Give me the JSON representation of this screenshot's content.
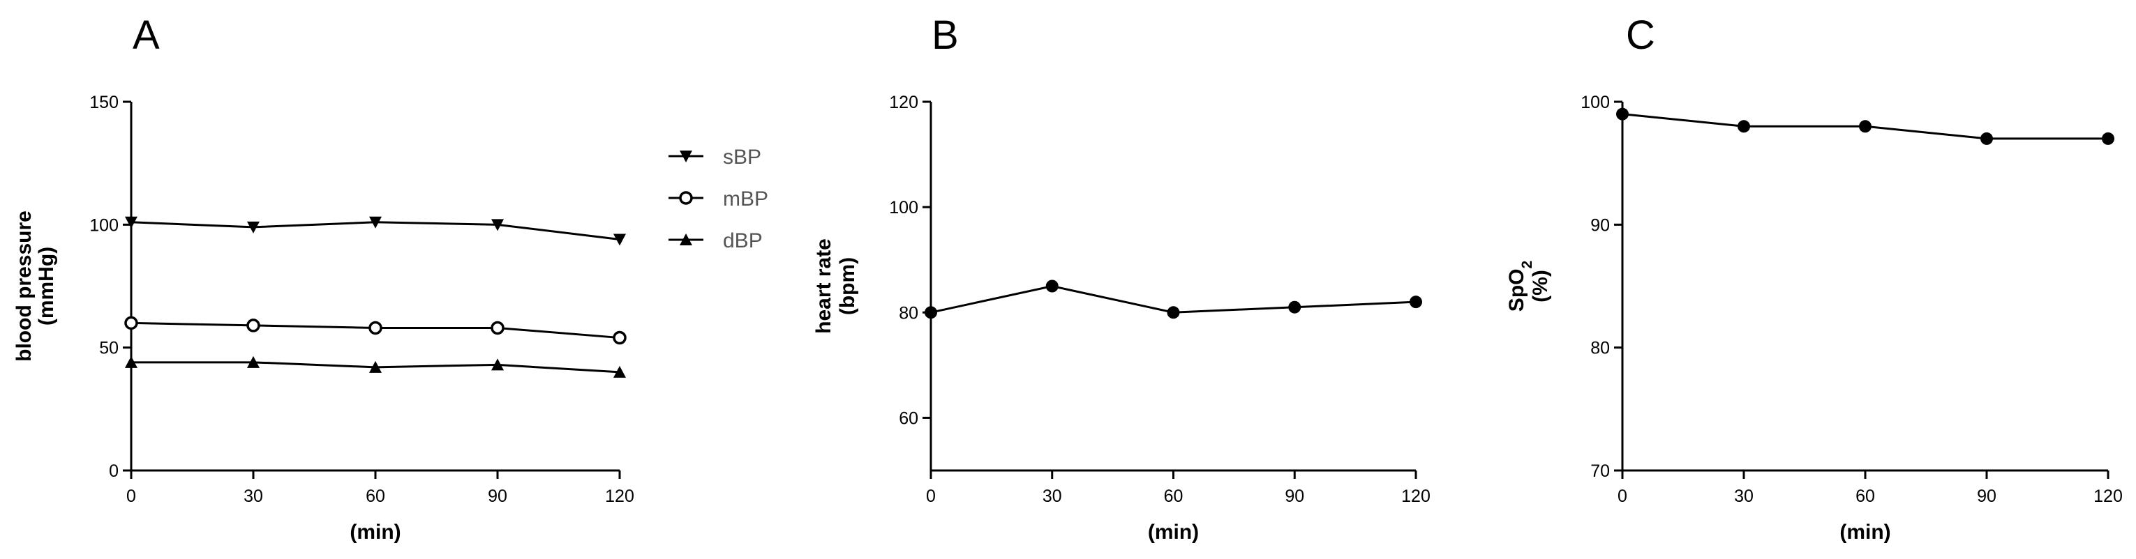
{
  "figure": {
    "panels": [
      {
        "letter": "A",
        "ylabel_line1": "blood pressure",
        "ylabel_line2": "(mmHg)",
        "xlabel": "(min)"
      },
      {
        "letter": "B",
        "ylabel_line1": "heart rate",
        "ylabel_line2": "(bpm)",
        "xlabel": "(min)"
      },
      {
        "letter": "C",
        "ylabel_line1": "SpO",
        "ylabel_line1_sub": "2",
        "ylabel_line2": "(%)",
        "xlabel": "(min)"
      }
    ]
  },
  "chart_data": [
    {
      "type": "line",
      "panel": "A",
      "x": [
        0,
        30,
        60,
        90,
        120
      ],
      "xlim": [
        0,
        120
      ],
      "ylim": [
        0,
        150
      ],
      "xticks": [
        0,
        30,
        60,
        90,
        120
      ],
      "yticks": [
        0,
        50,
        100,
        150
      ],
      "xlabel": "(min)",
      "ylabel": "blood pressure (mmHg)",
      "legend": "right",
      "series": [
        {
          "name": "sBP",
          "marker": "triangle-down",
          "values": [
            101,
            99,
            101,
            100,
            94
          ]
        },
        {
          "name": "mBP",
          "marker": "circle-open",
          "values": [
            60,
            59,
            58,
            58,
            54
          ]
        },
        {
          "name": "dBP",
          "marker": "triangle-up",
          "values": [
            44,
            44,
            42,
            43,
            40
          ]
        }
      ]
    },
    {
      "type": "line",
      "panel": "B",
      "x": [
        0,
        30,
        60,
        90,
        120
      ],
      "xlim": [
        0,
        120
      ],
      "ylim": [
        50,
        120
      ],
      "xticks": [
        0,
        30,
        60,
        90,
        120
      ],
      "yticks": [
        60,
        80,
        100,
        120
      ],
      "xlabel": "(min)",
      "ylabel": "heart rate (bpm)",
      "series": [
        {
          "name": "heart rate",
          "marker": "circle",
          "values": [
            80,
            85,
            80,
            81,
            82
          ]
        }
      ]
    },
    {
      "type": "line",
      "panel": "C",
      "x": [
        0,
        30,
        60,
        90,
        120
      ],
      "xlim": [
        0,
        120
      ],
      "ylim": [
        70,
        100
      ],
      "xticks": [
        0,
        30,
        60,
        90,
        120
      ],
      "yticks": [
        70,
        80,
        90,
        100
      ],
      "xlabel": "(min)",
      "ylabel": "SpO2 (%)",
      "series": [
        {
          "name": "SpO2",
          "marker": "circle",
          "values": [
            99,
            98,
            98,
            97,
            97
          ]
        }
      ]
    }
  ]
}
